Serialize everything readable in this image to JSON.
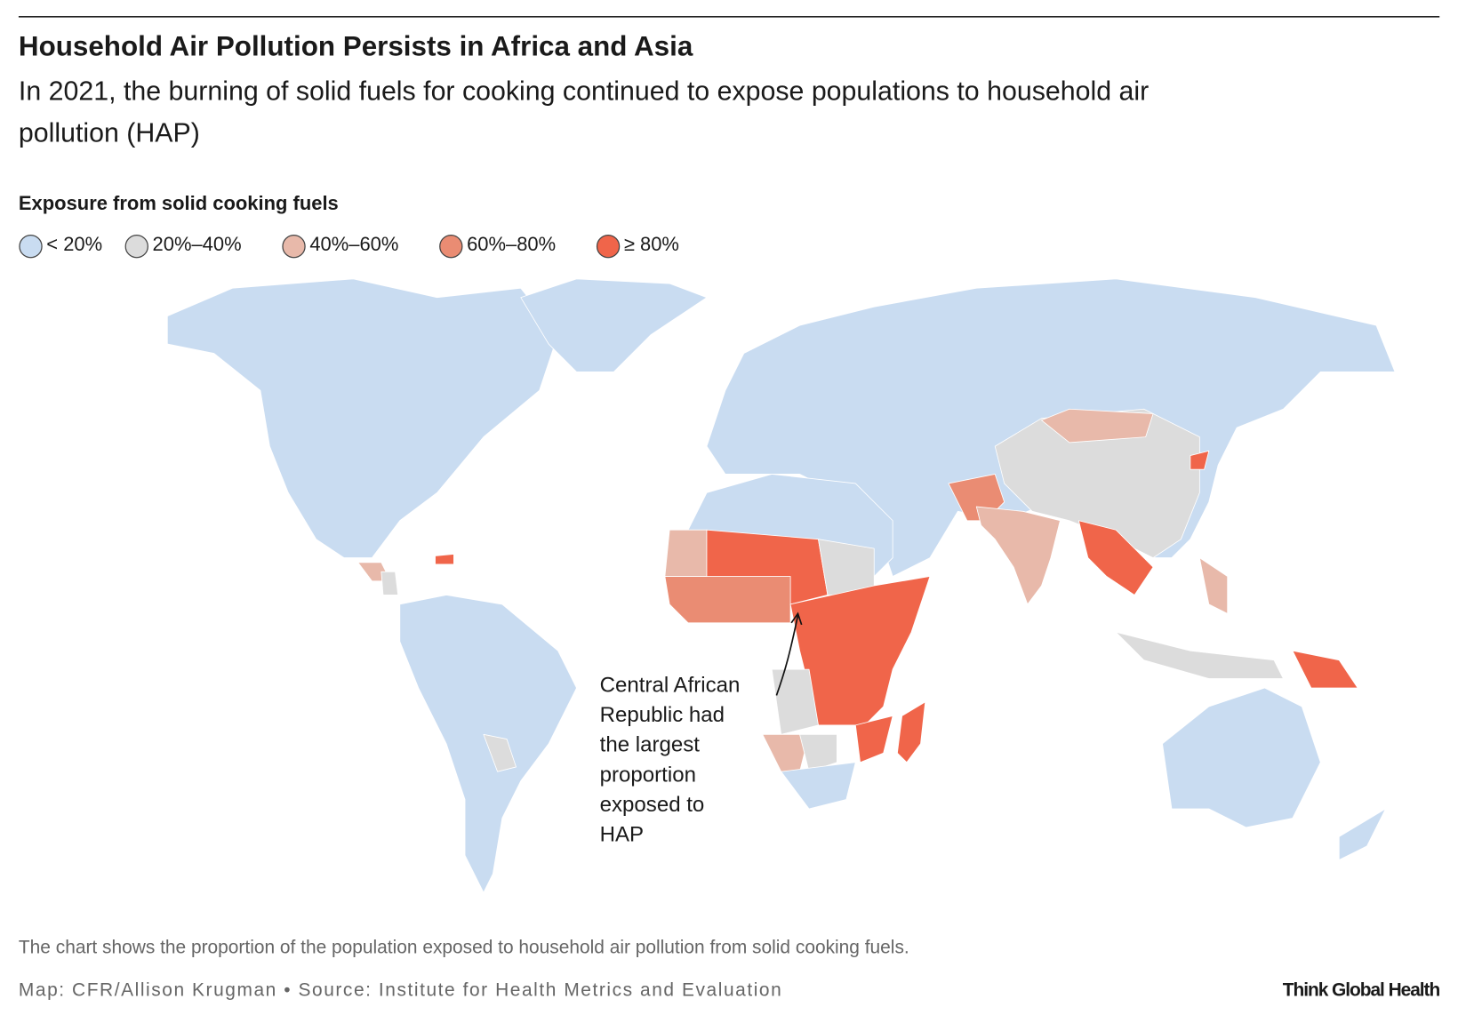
{
  "header": {
    "title": "Household Air Pollution Persists in Africa and Asia",
    "subtitle_lines": [
      "In 2021, the burning of solid fuels for cooking continued to expose populations to household air",
      "pollution (HAP)"
    ]
  },
  "legend": {
    "title": "Exposure from solid cooking fuels",
    "items": [
      {
        "label": "< 20%",
        "color": "#c9dcf1"
      },
      {
        "label": "20%–40%",
        "color": "#dcdcdc"
      },
      {
        "label": "40%–60%",
        "color": "#e8b9aa"
      },
      {
        "label": "60%–80%",
        "color": "#ea8c73"
      },
      {
        "label": "≥ 80%",
        "color": "#f0654a"
      }
    ]
  },
  "annotation": {
    "lines": [
      "Central African",
      "Republic had",
      "the largest",
      "proportion",
      "exposed to",
      "HAP"
    ]
  },
  "footer": {
    "note": "The chart shows the proportion of the population exposed to household air pollution from solid cooking fuels.",
    "credit": "Map: CFR/Allison Krugman • Source: Institute for Health Metrics and Evaluation",
    "brand": "Think Global Health"
  }
}
